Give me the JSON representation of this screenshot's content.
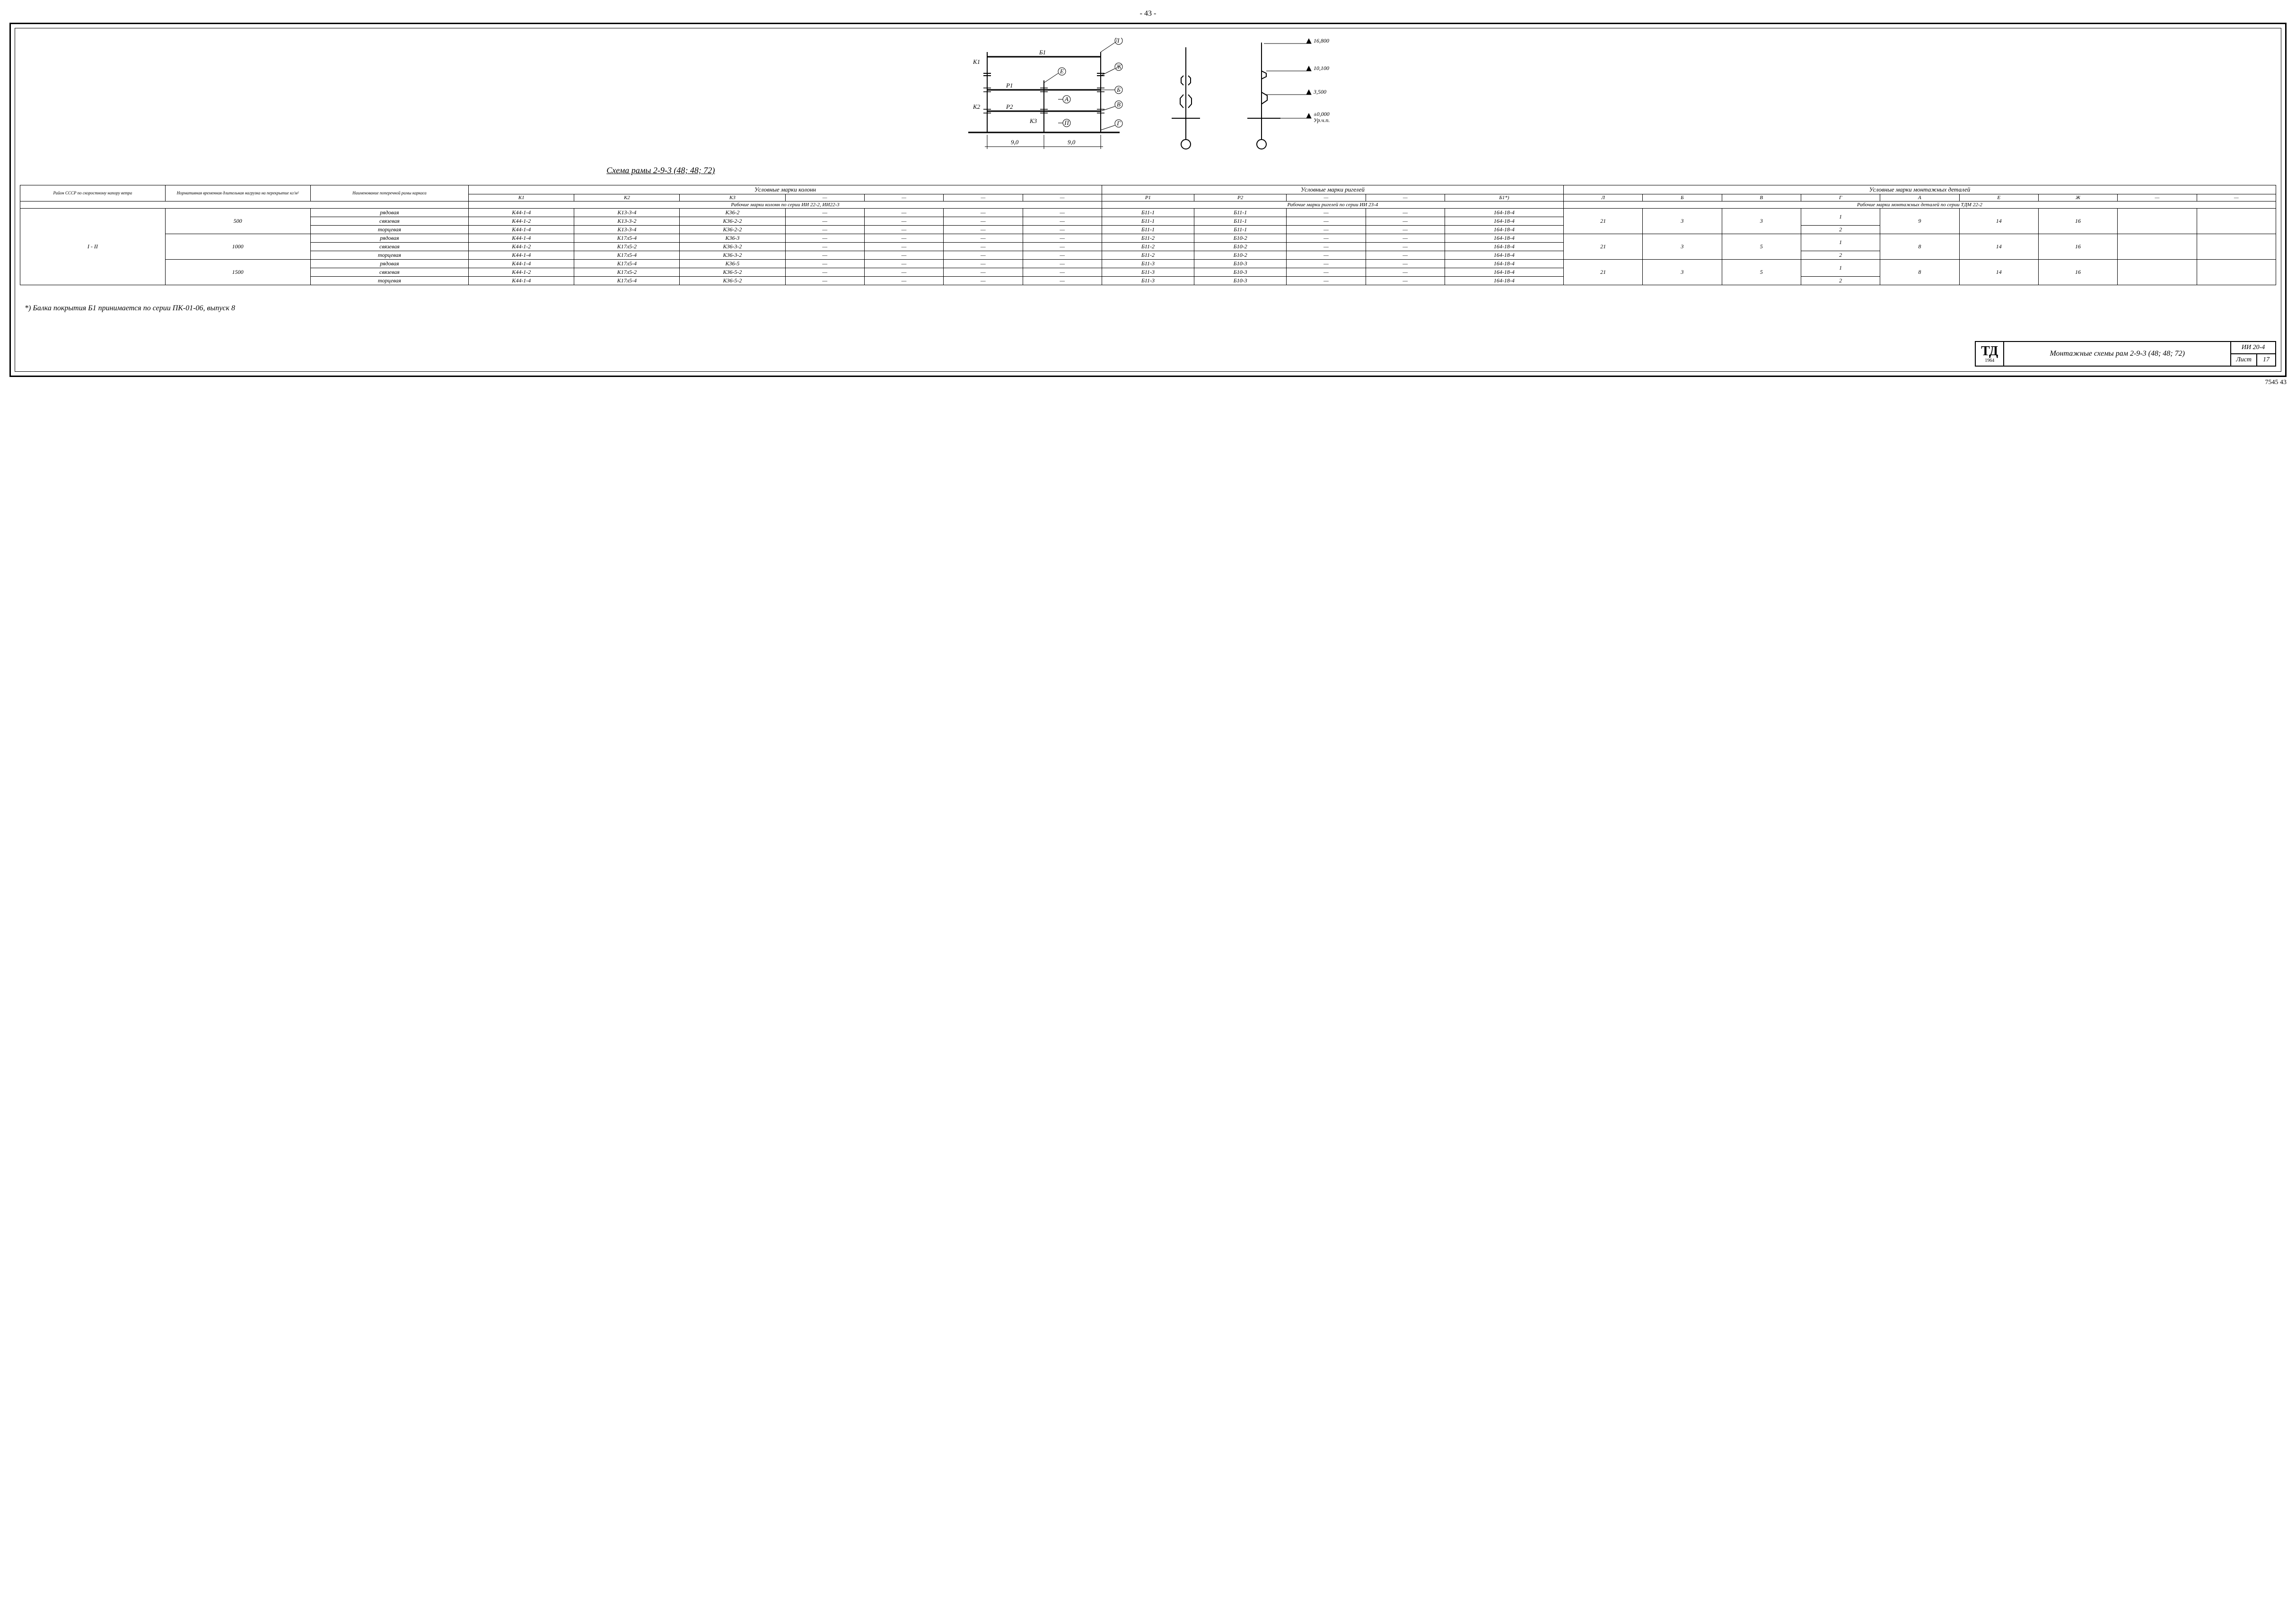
{
  "page_top": "- 43 -",
  "diagram": {
    "caption": "Схема рамы 2-9-3 (48; 48; 72)",
    "labels": {
      "b1": "Б1",
      "k1": "К1",
      "k2": "К2",
      "k3": "К3",
      "p1": "Р1",
      "p2": "Р2",
      "dim1": "9,0",
      "dim2": "9,0",
      "lev1": "16,800",
      "lev2": "10,100",
      "lev3": "3,500",
      "lev4": "±0,000",
      "lev4b": "Ур.ч.п.",
      "cA": "А",
      "cB": "Б",
      "cV": "В",
      "cG": "Г",
      "cE": "Е",
      "cZh": "Ж",
      "cL": "Л",
      "cP": "П"
    }
  },
  "headers": {
    "c1": "Район СССР по скоростному напору ветра",
    "c2": "Нормативная временная длительная нагрузка на перекрытие кг/м²",
    "c3": "Наименование поперечной рамы каркаса",
    "g1": "Условные марки колонн",
    "g2": "Условные марки ригелей",
    "g3": "Условные марки монтажных деталей",
    "sub_k1": "К1",
    "sub_k2": "К2",
    "sub_k3": "К3",
    "sub_p1": "Р1",
    "sub_p2": "Р2",
    "sub_b1": "Б1*)",
    "sub_l": "Л",
    "sub_b": "Б",
    "sub_v": "В",
    "sub_g": "Г",
    "sub_a": "А",
    "sub_e": "Е",
    "sub_zh": "Ж",
    "dash": "—",
    "note_k": "Рабочие марки колонн по серии ИИ 22-2, ИИ22-3",
    "note_r": "Рабочие марки ригелей по серии ИИ 23-4",
    "note_m": "Рабочие марки монтажных деталей по серии ТДМ 22-2"
  },
  "region": "I - II",
  "blocks": [
    {
      "load": "500",
      "rows": [
        {
          "name": "рядовая",
          "k1": "К44-1-4",
          "k2": "К13-3-4",
          "k3": "К36-2",
          "p1": "Б11-1",
          "p2": "Б11-1",
          "b1": "164-18-4"
        },
        {
          "name": "связевая",
          "k1": "К44-1-2",
          "k2": "К13-3-2",
          "k3": "К36-2-2",
          "p1": "Б11-1",
          "p2": "Б11-1",
          "b1": "164-18-4"
        },
        {
          "name": "торцевая",
          "k1": "К44-1-4",
          "k2": "К13-3-4",
          "k3": "К36-2-2",
          "p1": "Б11-1",
          "p2": "Б11-1",
          "b1": "164-18-4"
        }
      ],
      "m": {
        "l": "21",
        "b": "3",
        "v": "3",
        "g1": "1",
        "g2": "2",
        "a": "9",
        "e": "14",
        "zh": "16"
      }
    },
    {
      "load": "1000",
      "rows": [
        {
          "name": "рядовая",
          "k1": "К44-1-4",
          "k2": "К17л5-4",
          "k3": "К36-3",
          "p1": "Б11-2",
          "p2": "Б10-2",
          "b1": "164-18-4"
        },
        {
          "name": "связевая",
          "k1": "К44-1-2",
          "k2": "К17л5-2",
          "k3": "К36-3-2",
          "p1": "Б11-2",
          "p2": "Б10-2",
          "b1": "164-18-4"
        },
        {
          "name": "торцевая",
          "k1": "К44-1-4",
          "k2": "К17л5-4",
          "k3": "К36-3-2",
          "p1": "Б11-2",
          "p2": "Б10-2",
          "b1": "164-18-4"
        }
      ],
      "m": {
        "l": "21",
        "b": "3",
        "v": "5",
        "g1": "1",
        "g2": "2",
        "a": "8",
        "e": "14",
        "zh": "16"
      }
    },
    {
      "load": "1500",
      "rows": [
        {
          "name": "рядовая",
          "k1": "К44-1-4",
          "k2": "К17л5-4",
          "k3": "К36-5",
          "p1": "Б11-3",
          "p2": "Б10-3",
          "b1": "164-18-4"
        },
        {
          "name": "связевая",
          "k1": "К44-1-2",
          "k2": "К17л5-2",
          "k3": "К36-5-2",
          "p1": "Б11-3",
          "p2": "Б10-3",
          "b1": "164-18-4"
        },
        {
          "name": "торцевая",
          "k1": "К44-1-4",
          "k2": "К17л5-4",
          "k3": "К36-5-2",
          "p1": "Б11-3",
          "p2": "Б10-3",
          "b1": "164-18-4"
        }
      ],
      "m": {
        "l": "21",
        "b": "3",
        "v": "5",
        "g1": "1",
        "g2": "2",
        "a": "8",
        "e": "14",
        "zh": "16"
      }
    }
  ],
  "footnote": "*) Балка покрытия Б1 принимается по серии ПК-01-06, выпуск 8",
  "titleblock": {
    "logo": "ТД",
    "year": "1964",
    "title": "Монтажные схемы рам 2-9-3 (48; 48; 72)",
    "series": "ИИ 20-4",
    "sheet_label": "Лист",
    "sheet": "17"
  },
  "page_bottom": "7545   43"
}
